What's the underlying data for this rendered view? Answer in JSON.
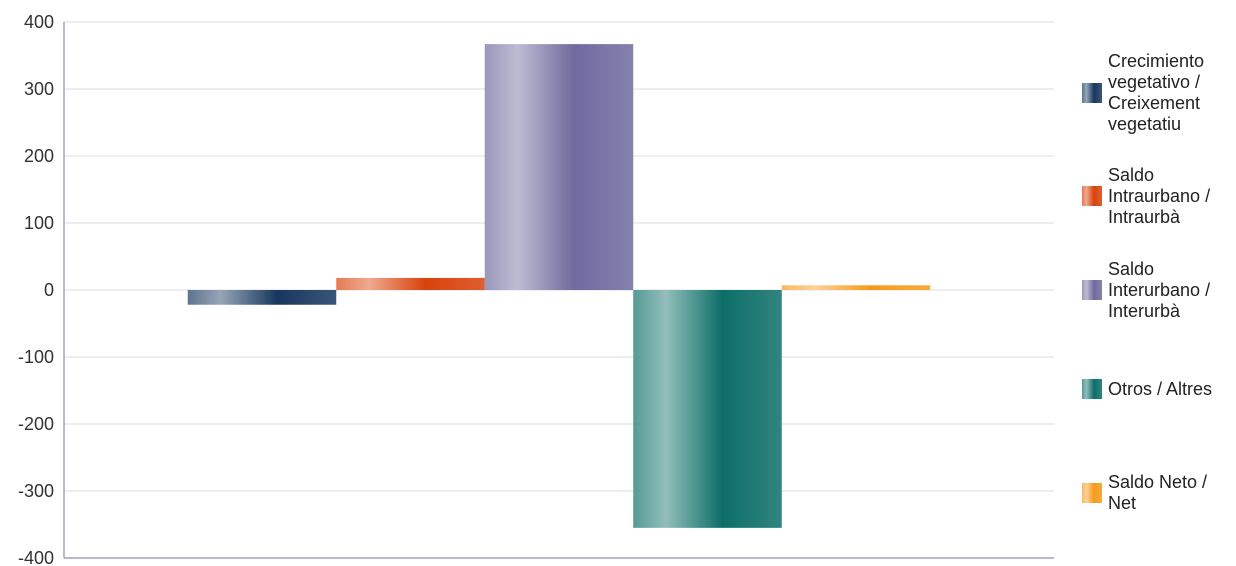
{
  "chart_data": {
    "type": "bar",
    "categories": [
      ""
    ],
    "series": [
      {
        "name": "Crecimiento vegetativo / Creixement vegetatiu",
        "values": [
          -22
        ],
        "color": "#17375e"
      },
      {
        "name": "Saldo Intraurbano / Intraurbà",
        "values": [
          18
        ],
        "color": "#d9420b"
      },
      {
        "name": "Saldo Interurbano / Interurbà",
        "values": [
          367
        ],
        "color": "#6f6b9e"
      },
      {
        "name": "Otros / Altres",
        "values": [
          -355
        ],
        "color": "#0d6e68"
      },
      {
        "name": "Saldo Neto / Net",
        "values": [
          7
        ],
        "color": "#f59b1b"
      }
    ],
    "title": "",
    "xlabel": "",
    "ylabel": "",
    "ylim": [
      -400,
      400
    ],
    "yticks": [
      "400",
      "300",
      "200",
      "100",
      "0",
      "-100",
      "-200",
      "-300",
      "-400"
    ],
    "grid": true,
    "legend_position": "right"
  }
}
